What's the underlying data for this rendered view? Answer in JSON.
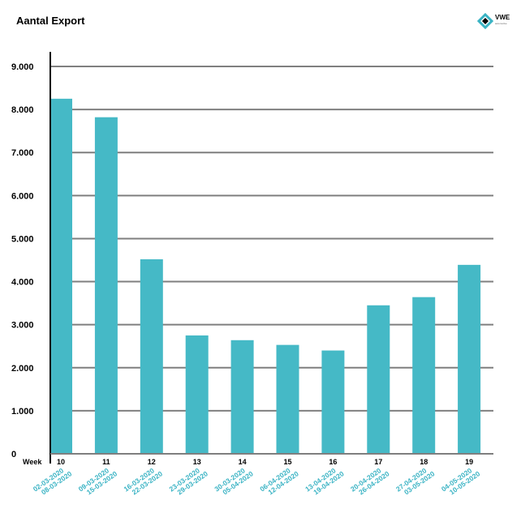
{
  "chart_data": {
    "type": "bar",
    "title": "Aantal Export",
    "week_label": "Week",
    "categories": [
      "10",
      "11",
      "12",
      "13",
      "14",
      "15",
      "16",
      "17",
      "18",
      "19"
    ],
    "date_ranges": [
      [
        "02-03-2020",
        "08-03-2020"
      ],
      [
        "09-03-2020",
        "15-03-2020"
      ],
      [
        "16-03-2020",
        "22-03-2020"
      ],
      [
        "23-03-2020",
        "29-03-2020"
      ],
      [
        "30-03-2020",
        "05-04-2020"
      ],
      [
        "06-04-2020",
        "12-04-2020"
      ],
      [
        "13-04-2020",
        "19-04-2020"
      ],
      [
        "20-04-2020",
        "26-04-2020"
      ],
      [
        "27-04-2020",
        "03-05-2020"
      ],
      [
        "04-05-2020",
        "10-05-2020"
      ]
    ],
    "values": [
      8250,
      7820,
      4520,
      2750,
      2640,
      2530,
      2400,
      3450,
      3640,
      4390
    ],
    "ylim": [
      0,
      9000
    ],
    "yticks": [
      0,
      1000,
      2000,
      3000,
      4000,
      5000,
      6000,
      7000,
      8000,
      9000
    ],
    "ytick_labels": [
      "0",
      "1.000",
      "2.000",
      "3.000",
      "4.000",
      "5.000",
      "6.000",
      "7.000",
      "8.000",
      "9.000"
    ],
    "grid": true,
    "bar_color": "#45b9c6",
    "grid_color": "#7f7f7f",
    "date_label_color": "#3ab3c4"
  },
  "logo": {
    "text": "VWE",
    "sub": "automotive"
  }
}
